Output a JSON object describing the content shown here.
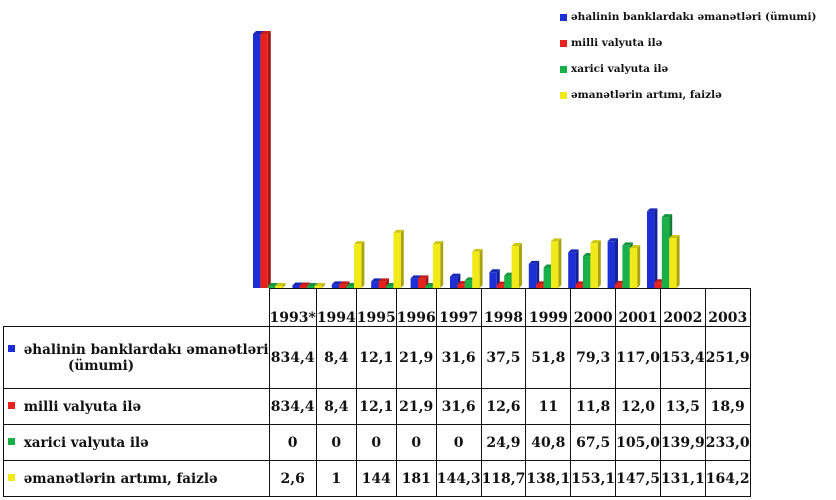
{
  "chart_data": {
    "type": "bar",
    "categories": [
      "1993*",
      "1994",
      "1995",
      "1996",
      "1997",
      "1998",
      "1999",
      "2000",
      "2001",
      "2002",
      "2003"
    ],
    "series": [
      {
        "name": "əhalinin banklardakı əmanətləri (ümumi)",
        "color": "#1c2fd6",
        "values": [
          834.4,
          8.4,
          12.1,
          21.9,
          31.6,
          37.5,
          51.8,
          79.3,
          117.0,
          153.4,
          251.9
        ],
        "labels": [
          "834,4",
          "8,4",
          "12,1",
          "21,9",
          "31,6",
          "37,5",
          "51,8",
          "79,3",
          "117,0",
          "153,4",
          "251,9"
        ]
      },
      {
        "name": "milli valyuta ilə",
        "color": "#e8211c",
        "values": [
          834.4,
          8.4,
          12.1,
          21.9,
          31.6,
          12.6,
          11,
          11.8,
          12.0,
          13.5,
          18.9
        ],
        "labels": [
          "834,4",
          "8,4",
          "12,1",
          "21,9",
          "31,6",
          "12,6",
          "11",
          "11,8",
          "12,0",
          "13,5",
          "18,9"
        ]
      },
      {
        "name": "xarici valyuta ilə",
        "color": "#19b04a",
        "values": [
          0,
          0,
          0,
          0,
          0,
          24.9,
          40.8,
          67.5,
          105.0,
          139.9,
          233.0
        ],
        "labels": [
          "0",
          "0",
          "0",
          "0",
          "0",
          "24,9",
          "40,8",
          "67,5",
          "105,0",
          "139,9",
          "233,0"
        ]
      },
      {
        "name": "əmanətlərin artımı, faizlə",
        "color": "#f2ea18",
        "values": [
          2.6,
          1,
          144,
          181,
          144.3,
          118.7,
          138.1,
          153.1,
          147.5,
          131.1,
          164.2
        ],
        "labels": [
          "2,6",
          "1",
          "144",
          "181",
          "144,3",
          "118,7",
          "138,1",
          "153,1",
          "147,5",
          "131,1",
          "164,2"
        ]
      }
    ],
    "legend_labels": [
      "əhalinin banklardakı əmanətləri (ümumi)",
      "milli valyuta ilə",
      "xarici valyuta ilə",
      "əmanətlərin artımı, faizlə"
    ],
    "table_labels": [
      [
        "əhalinin banklardakı əmanətləri",
        "(ümumi)"
      ],
      [
        "milli valyuta ilə"
      ],
      [
        "xarici valyuta ilə"
      ],
      [
        "əmanətlərin artımı, faizlə"
      ]
    ],
    "ylim": [
      0,
      834.4
    ],
    "legend_position": "top-right",
    "grid": false
  }
}
